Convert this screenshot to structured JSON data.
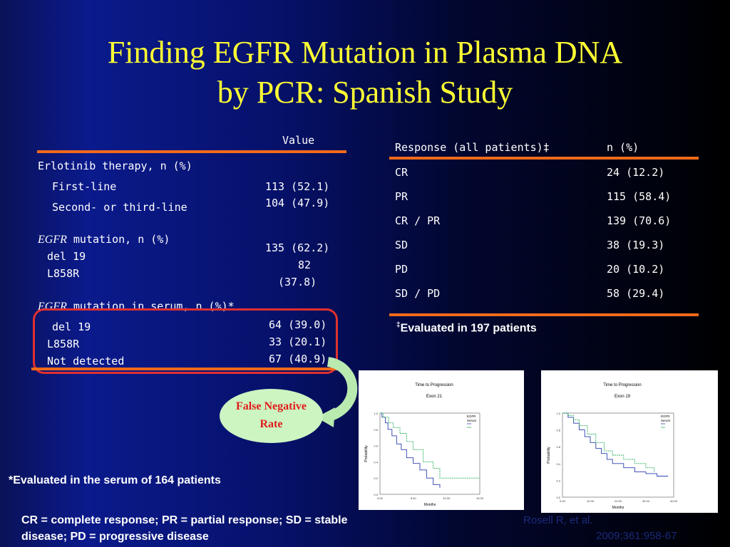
{
  "title": {
    "line1": "Finding EGFR Mutation in Plasma DNA",
    "line2": "by PCR: Spanish Study"
  },
  "left_table": {
    "value_header": "Value",
    "erlotinib_label": "Erlotinib therapy, n (%)",
    "first_line": "First-line",
    "first_line_value": "113 (52.1)",
    "second_line": "Second- or third-line",
    "second_line_value": "104 (47.9)",
    "egfr_italic": "EGFR",
    "egfr_mut_label": " mutation, n (%)",
    "del19": "del 19",
    "del19_value": "135 (62.2)",
    "l858r": "L858R",
    "l858r_value_a": "82",
    "l858r_value_b": "(37.8)",
    "serum_label": " mutation in serum, n (%)*",
    "serum_del19": "del 19",
    "serum_del19_value": "64 (39.0)",
    "serum_l858r": "L858R",
    "serum_l858r_value": "33 (20.1)",
    "serum_nd": "Not detected",
    "serum_nd_value": "67 (40.9)"
  },
  "response_table": {
    "header_label": "Response (all patients)‡",
    "header_value": "n (%)",
    "rows": [
      {
        "label": "CR",
        "value": "24 (12.2)"
      },
      {
        "label": "PR",
        "value": "115 (58.4)"
      },
      {
        "label": "CR / PR",
        "value": "139 (70.6)"
      },
      {
        "label": "SD",
        "value": "38 (19.3)"
      },
      {
        "label": "PD",
        "value": "20 (10.2)"
      },
      {
        "label": "SD / PD",
        "value": "58 (29.4)"
      }
    ],
    "footnote_mark": "‡",
    "footnote": "Evaluated in 197 patients"
  },
  "callout": {
    "line1": "False Negative",
    "line2": "Rate"
  },
  "serum_note": "*Evaluated in the serum of 164 patients",
  "abbrev": {
    "line1": "CR = complete response; PR = partial response; SD = stable",
    "line2": "disease; PD = progressive disease"
  },
  "reference": {
    "line1": "Rosell R, et al.",
    "line2": "2009;361:958-67"
  },
  "colors": {
    "title": "#ffff33",
    "bar": "#f26a1b",
    "callout_text": "#e21a1a",
    "callout_bg": "#ccf5c2"
  },
  "chart_data": [
    {
      "type": "line",
      "title": "Time to Progression",
      "subtitle": "Exon 21",
      "xlabel": "Months",
      "ylabel": "Probability",
      "xlim": [
        0,
        15
      ],
      "ylim": [
        0,
        1
      ],
      "x_ticks": [
        "0.00",
        "5.00",
        "10.00",
        "15.00"
      ],
      "y_ticks": [
        "0.0",
        "0.2",
        "0.4",
        "0.6",
        "0.8",
        "1.0"
      ],
      "legend_title": "EGFR Serum",
      "legend_position": "top-right",
      "series": [
        {
          "color": "#2a3fb0",
          "points": [
            [
              0,
              1
            ],
            [
              0.3,
              0.95
            ],
            [
              0.8,
              0.88
            ],
            [
              1.2,
              0.8
            ],
            [
              1.8,
              0.72
            ],
            [
              2.5,
              0.62
            ],
            [
              3.2,
              0.55
            ],
            [
              4,
              0.45
            ],
            [
              5,
              0.38
            ],
            [
              6,
              0.3
            ],
            [
              7,
              0.2
            ],
            [
              8,
              0.12
            ],
            [
              9,
              0.08
            ]
          ]
        },
        {
          "color": "#30b060",
          "points": [
            [
              0,
              1
            ],
            [
              0.5,
              0.95
            ],
            [
              1.3,
              0.88
            ],
            [
              2,
              0.82
            ],
            [
              3,
              0.75
            ],
            [
              4,
              0.65
            ],
            [
              5,
              0.55
            ],
            [
              6.5,
              0.4
            ],
            [
              8,
              0.32
            ],
            [
              9,
              0.2
            ],
            [
              15,
              0.2
            ]
          ]
        }
      ]
    },
    {
      "type": "line",
      "title": "Time to Progression",
      "subtitle": "Exon 19",
      "xlabel": "Months",
      "ylabel": "Probability",
      "xlim": [
        0,
        40
      ],
      "ylim": [
        0,
        1
      ],
      "x_ticks": [
        "0.00",
        "10.00",
        "20.00",
        "30.00",
        "40.00"
      ],
      "y_ticks": [
        "0.0",
        "0.2",
        "0.4",
        "0.6",
        "0.8",
        "1.0"
      ],
      "legend_title": "EGFR Serum",
      "legend_position": "top-right",
      "series": [
        {
          "color": "#2a3fb0",
          "points": [
            [
              0,
              1
            ],
            [
              2,
              0.95
            ],
            [
              4,
              0.88
            ],
            [
              6,
              0.8
            ],
            [
              8,
              0.72
            ],
            [
              10,
              0.65
            ],
            [
              12,
              0.58
            ],
            [
              14,
              0.52
            ],
            [
              16,
              0.45
            ],
            [
              18,
              0.4
            ],
            [
              22,
              0.35
            ],
            [
              26,
              0.3
            ],
            [
              30,
              0.28
            ],
            [
              34,
              0.25
            ],
            [
              38,
              0.25
            ]
          ]
        },
        {
          "color": "#30b060",
          "points": [
            [
              0,
              1
            ],
            [
              2,
              0.97
            ],
            [
              4,
              0.92
            ],
            [
              6,
              0.85
            ],
            [
              9,
              0.75
            ],
            [
              12,
              0.65
            ],
            [
              15,
              0.55
            ],
            [
              18,
              0.5
            ],
            [
              22,
              0.45
            ],
            [
              26,
              0.4
            ],
            [
              30,
              0.35
            ],
            [
              33,
              0.3
            ]
          ]
        }
      ]
    }
  ]
}
